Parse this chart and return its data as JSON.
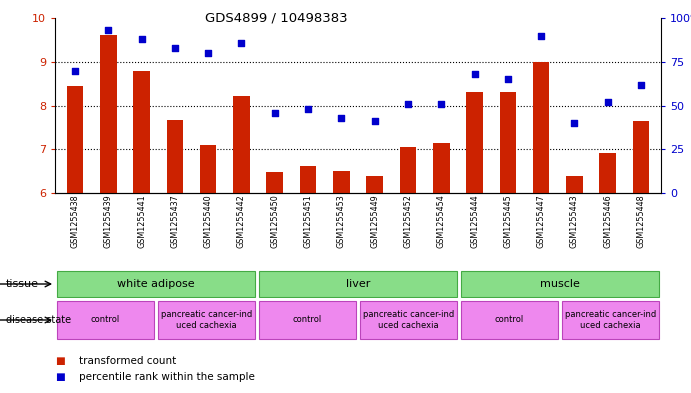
{
  "title": "GDS4899 / 10498383",
  "samples": [
    "GSM1255438",
    "GSM1255439",
    "GSM1255441",
    "GSM1255437",
    "GSM1255440",
    "GSM1255442",
    "GSM1255450",
    "GSM1255451",
    "GSM1255453",
    "GSM1255449",
    "GSM1255452",
    "GSM1255454",
    "GSM1255444",
    "GSM1255445",
    "GSM1255447",
    "GSM1255443",
    "GSM1255446",
    "GSM1255448"
  ],
  "transformed_count": [
    8.45,
    9.62,
    8.78,
    7.68,
    7.1,
    8.22,
    6.48,
    6.62,
    6.5,
    6.38,
    7.05,
    7.15,
    8.3,
    8.3,
    9.0,
    6.38,
    6.92,
    7.65
  ],
  "percentile_rank": [
    70,
    93,
    88,
    83,
    80,
    86,
    46,
    48,
    43,
    41,
    51,
    51,
    68,
    65,
    90,
    40,
    52,
    62
  ],
  "bar_color": "#cc2200",
  "dot_color": "#0000cc",
  "ylim_left": [
    6,
    10
  ],
  "ylim_right": [
    0,
    100
  ],
  "yticks_left": [
    6,
    7,
    8,
    9,
    10
  ],
  "yticks_right": [
    0,
    25,
    50,
    75,
    100
  ],
  "tissue_groups": [
    {
      "label": "white adipose",
      "start": 0,
      "end": 6
    },
    {
      "label": "liver",
      "start": 6,
      "end": 12
    },
    {
      "label": "muscle",
      "start": 12,
      "end": 18
    }
  ],
  "disease_groups": [
    {
      "label": "control",
      "start": 0,
      "end": 3
    },
    {
      "label": "pancreatic cancer-ind\nuced cachexia",
      "start": 3,
      "end": 6
    },
    {
      "label": "control",
      "start": 6,
      "end": 9
    },
    {
      "label": "pancreatic cancer-ind\nuced cachexia",
      "start": 9,
      "end": 12
    },
    {
      "label": "control",
      "start": 12,
      "end": 15
    },
    {
      "label": "pancreatic cancer-ind\nuced cachexia",
      "start": 15,
      "end": 18
    }
  ],
  "background_color": "#ffffff",
  "tick_label_color_left": "#cc2200",
  "tick_label_color_right": "#0000cc",
  "bar_width": 0.5,
  "tissue_color": "#88dd88",
  "tissue_edge_color": "#44aa44",
  "disease_color": "#ee88ee",
  "disease_edge_color": "#bb44bb",
  "legend_items": [
    {
      "label": "transformed count",
      "color": "#cc2200"
    },
    {
      "label": "percentile rank within the sample",
      "color": "#0000cc"
    }
  ]
}
